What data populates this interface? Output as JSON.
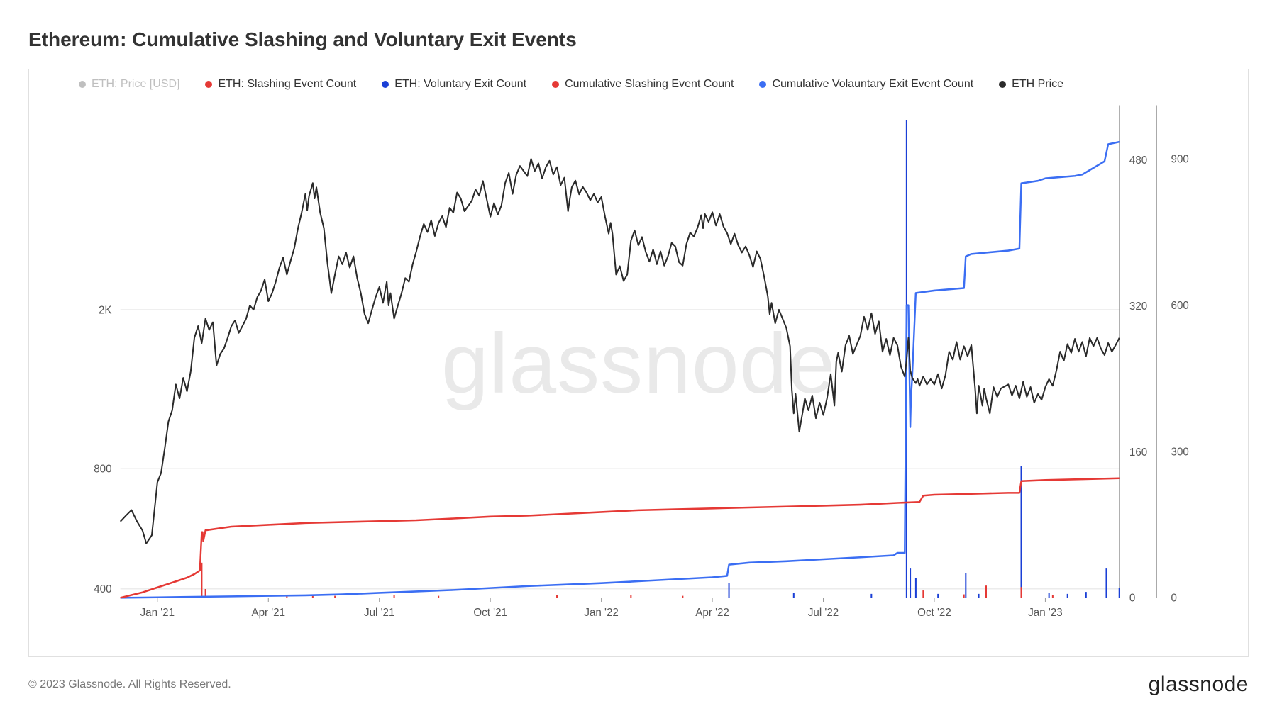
{
  "title": "Ethereum: Cumulative Slashing and Voluntary Exit Events",
  "watermark": "glassnode",
  "copyright": "© 2023 Glassnode. All Rights Reserved.",
  "brand": "glassnode",
  "colors": {
    "price": "#2a2a2a",
    "slash_event": "#e53935",
    "vol_exit_event": "#1a3fd6",
    "cum_slash": "#e53935",
    "cum_vol_exit": "#3b6ef3",
    "muted": "#bfbfbf",
    "grid": "#e5e5e5",
    "border": "#e0e0e0",
    "bg": "#ffffff"
  },
  "legend": [
    {
      "label": "ETH: Price [USD]",
      "color": "#bfbfbf",
      "muted": true
    },
    {
      "label": "ETH: Slashing Event Count",
      "color": "#e53935"
    },
    {
      "label": "ETH: Voluntary Exit Count",
      "color": "#1a3fd6"
    },
    {
      "label": "Cumulative Slashing Event Count",
      "color": "#e53935"
    },
    {
      "label": "Cumulative Volauntary Exit Event Count",
      "color": "#3b6ef3"
    },
    {
      "label": "ETH Price",
      "color": "#2a2a2a"
    }
  ],
  "x_axis": {
    "min": 0,
    "max": 27,
    "ticks": [
      {
        "t": 1,
        "label": "Jan '21"
      },
      {
        "t": 4,
        "label": "Apr '21"
      },
      {
        "t": 7,
        "label": "Jul '21"
      },
      {
        "t": 10,
        "label": "Oct '21"
      },
      {
        "t": 13,
        "label": "Jan '22"
      },
      {
        "t": 16,
        "label": "Apr '22"
      },
      {
        "t": 19,
        "label": "Jul '22"
      },
      {
        "t": 22,
        "label": "Oct '22"
      },
      {
        "t": 25,
        "label": "Jan '23"
      }
    ]
  },
  "price_axis": {
    "log": true,
    "min": 380,
    "max": 6500,
    "ticks": [
      {
        "v": 400,
        "label": "400"
      },
      {
        "v": 800,
        "label": "800"
      },
      {
        "v": 2000,
        "label": "2K"
      }
    ],
    "line_width": 2
  },
  "right1_axis": {
    "min": 0,
    "max": 540,
    "ticks": [
      {
        "v": 0,
        "label": "0"
      },
      {
        "v": 160,
        "label": "160"
      },
      {
        "v": 320,
        "label": "320"
      },
      {
        "v": 480,
        "label": "480"
      }
    ]
  },
  "right2_axis": {
    "min": 0,
    "max": 1010,
    "ticks": [
      {
        "v": 0,
        "label": "0"
      },
      {
        "v": 300,
        "label": "300"
      },
      {
        "v": 600,
        "label": "600"
      },
      {
        "v": 900,
        "label": "900"
      }
    ]
  },
  "price": [
    [
      0.0,
      590
    ],
    [
      0.15,
      610
    ],
    [
      0.3,
      630
    ],
    [
      0.45,
      590
    ],
    [
      0.6,
      560
    ],
    [
      0.7,
      520
    ],
    [
      0.85,
      545
    ],
    [
      1.0,
      740
    ],
    [
      1.1,
      780
    ],
    [
      1.2,
      900
    ],
    [
      1.3,
      1050
    ],
    [
      1.4,
      1120
    ],
    [
      1.5,
      1300
    ],
    [
      1.6,
      1200
    ],
    [
      1.7,
      1350
    ],
    [
      1.8,
      1250
    ],
    [
      1.9,
      1400
    ],
    [
      2.0,
      1700
    ],
    [
      2.1,
      1820
    ],
    [
      2.2,
      1650
    ],
    [
      2.3,
      1900
    ],
    [
      2.4,
      1780
    ],
    [
      2.5,
      1860
    ],
    [
      2.6,
      1450
    ],
    [
      2.7,
      1550
    ],
    [
      2.8,
      1600
    ],
    [
      2.9,
      1700
    ],
    [
      3.0,
      1820
    ],
    [
      3.1,
      1880
    ],
    [
      3.2,
      1750
    ],
    [
      3.3,
      1820
    ],
    [
      3.4,
      1900
    ],
    [
      3.5,
      2050
    ],
    [
      3.6,
      2000
    ],
    [
      3.7,
      2150
    ],
    [
      3.8,
      2230
    ],
    [
      3.9,
      2380
    ],
    [
      4.0,
      2100
    ],
    [
      4.1,
      2200
    ],
    [
      4.2,
      2350
    ],
    [
      4.3,
      2550
    ],
    [
      4.4,
      2700
    ],
    [
      4.5,
      2450
    ],
    [
      4.6,
      2650
    ],
    [
      4.7,
      2850
    ],
    [
      4.8,
      3200
    ],
    [
      4.9,
      3500
    ],
    [
      5.0,
      3900
    ],
    [
      5.05,
      3550
    ],
    [
      5.1,
      3850
    ],
    [
      5.2,
      4150
    ],
    [
      5.25,
      3800
    ],
    [
      5.3,
      4050
    ],
    [
      5.4,
      3500
    ],
    [
      5.5,
      3200
    ],
    [
      5.6,
      2600
    ],
    [
      5.65,
      2400
    ],
    [
      5.7,
      2200
    ],
    [
      5.8,
      2450
    ],
    [
      5.9,
      2720
    ],
    [
      6.0,
      2600
    ],
    [
      6.1,
      2780
    ],
    [
      6.2,
      2550
    ],
    [
      6.3,
      2720
    ],
    [
      6.4,
      2400
    ],
    [
      6.5,
      2200
    ],
    [
      6.6,
      1950
    ],
    [
      6.7,
      1850
    ],
    [
      6.8,
      2000
    ],
    [
      6.9,
      2150
    ],
    [
      7.0,
      2280
    ],
    [
      7.1,
      2080
    ],
    [
      7.2,
      2350
    ],
    [
      7.25,
      2050
    ],
    [
      7.3,
      2200
    ],
    [
      7.4,
      1900
    ],
    [
      7.5,
      2050
    ],
    [
      7.6,
      2200
    ],
    [
      7.7,
      2400
    ],
    [
      7.8,
      2350
    ],
    [
      7.9,
      2600
    ],
    [
      8.0,
      2800
    ],
    [
      8.1,
      3050
    ],
    [
      8.2,
      3280
    ],
    [
      8.3,
      3130
    ],
    [
      8.4,
      3350
    ],
    [
      8.5,
      3060
    ],
    [
      8.6,
      3300
    ],
    [
      8.7,
      3430
    ],
    [
      8.8,
      3220
    ],
    [
      8.9,
      3600
    ],
    [
      9.0,
      3500
    ],
    [
      9.1,
      3930
    ],
    [
      9.2,
      3800
    ],
    [
      9.3,
      3530
    ],
    [
      9.5,
      3750
    ],
    [
      9.6,
      4000
    ],
    [
      9.7,
      3860
    ],
    [
      9.8,
      4200
    ],
    [
      10.0,
      3420
    ],
    [
      10.1,
      3700
    ],
    [
      10.2,
      3460
    ],
    [
      10.3,
      3650
    ],
    [
      10.4,
      4150
    ],
    [
      10.5,
      4400
    ],
    [
      10.6,
      3900
    ],
    [
      10.7,
      4350
    ],
    [
      10.8,
      4580
    ],
    [
      11.0,
      4320
    ],
    [
      11.1,
      4770
    ],
    [
      11.2,
      4450
    ],
    [
      11.3,
      4650
    ],
    [
      11.4,
      4260
    ],
    [
      11.5,
      4550
    ],
    [
      11.6,
      4720
    ],
    [
      11.7,
      4360
    ],
    [
      11.8,
      4550
    ],
    [
      11.9,
      4100
    ],
    [
      12.0,
      4280
    ],
    [
      12.1,
      3530
    ],
    [
      12.15,
      3800
    ],
    [
      12.2,
      4050
    ],
    [
      12.3,
      4210
    ],
    [
      12.4,
      3890
    ],
    [
      12.5,
      4060
    ],
    [
      12.6,
      3930
    ],
    [
      12.7,
      3760
    ],
    [
      12.8,
      3900
    ],
    [
      12.9,
      3710
    ],
    [
      13.0,
      3830
    ],
    [
      13.1,
      3420
    ],
    [
      13.2,
      3100
    ],
    [
      13.25,
      3300
    ],
    [
      13.3,
      3100
    ],
    [
      13.4,
      2450
    ],
    [
      13.5,
      2570
    ],
    [
      13.6,
      2360
    ],
    [
      13.7,
      2450
    ],
    [
      13.8,
      2980
    ],
    [
      13.9,
      3160
    ],
    [
      14.0,
      2900
    ],
    [
      14.1,
      3040
    ],
    [
      14.2,
      2790
    ],
    [
      14.3,
      2640
    ],
    [
      14.4,
      2830
    ],
    [
      14.5,
      2600
    ],
    [
      14.6,
      2800
    ],
    [
      14.7,
      2580
    ],
    [
      14.8,
      2720
    ],
    [
      14.9,
      2940
    ],
    [
      15.0,
      2880
    ],
    [
      15.1,
      2630
    ],
    [
      15.2,
      2580
    ],
    [
      15.3,
      2920
    ],
    [
      15.4,
      3120
    ],
    [
      15.5,
      3050
    ],
    [
      15.6,
      3210
    ],
    [
      15.7,
      3450
    ],
    [
      15.75,
      3200
    ],
    [
      15.8,
      3470
    ],
    [
      15.9,
      3320
    ],
    [
      16.0,
      3510
    ],
    [
      16.1,
      3250
    ],
    [
      16.2,
      3470
    ],
    [
      16.3,
      3230
    ],
    [
      16.4,
      3110
    ],
    [
      16.5,
      2920
    ],
    [
      16.6,
      3100
    ],
    [
      16.7,
      2900
    ],
    [
      16.8,
      2780
    ],
    [
      16.9,
      2880
    ],
    [
      17.0,
      2740
    ],
    [
      17.1,
      2560
    ],
    [
      17.2,
      2800
    ],
    [
      17.3,
      2680
    ],
    [
      17.4,
      2420
    ],
    [
      17.5,
      2160
    ],
    [
      17.55,
      1950
    ],
    [
      17.6,
      2080
    ],
    [
      17.7,
      1850
    ],
    [
      17.8,
      2000
    ],
    [
      18.0,
      1800
    ],
    [
      18.1,
      1620
    ],
    [
      18.15,
      1260
    ],
    [
      18.2,
      1100
    ],
    [
      18.25,
      1230
    ],
    [
      18.3,
      1100
    ],
    [
      18.35,
      990
    ],
    [
      18.45,
      1120
    ],
    [
      18.5,
      1200
    ],
    [
      18.6,
      1120
    ],
    [
      18.7,
      1220
    ],
    [
      18.8,
      1070
    ],
    [
      18.9,
      1170
    ],
    [
      19.0,
      1090
    ],
    [
      19.1,
      1200
    ],
    [
      19.2,
      1380
    ],
    [
      19.3,
      1150
    ],
    [
      19.35,
      1480
    ],
    [
      19.4,
      1560
    ],
    [
      19.5,
      1400
    ],
    [
      19.6,
      1630
    ],
    [
      19.7,
      1720
    ],
    [
      19.8,
      1550
    ],
    [
      20.0,
      1720
    ],
    [
      20.1,
      1920
    ],
    [
      20.2,
      1780
    ],
    [
      20.3,
      1960
    ],
    [
      20.4,
      1740
    ],
    [
      20.5,
      1870
    ],
    [
      20.6,
      1570
    ],
    [
      20.7,
      1690
    ],
    [
      20.8,
      1540
    ],
    [
      20.9,
      1700
    ],
    [
      21.0,
      1630
    ],
    [
      21.1,
      1440
    ],
    [
      21.2,
      1360
    ],
    [
      21.25,
      1500
    ],
    [
      21.3,
      1700
    ],
    [
      21.35,
      1410
    ],
    [
      21.4,
      1350
    ],
    [
      21.5,
      1310
    ],
    [
      21.55,
      1340
    ],
    [
      21.6,
      1290
    ],
    [
      21.7,
      1360
    ],
    [
      21.8,
      1300
    ],
    [
      21.9,
      1340
    ],
    [
      22.0,
      1300
    ],
    [
      22.1,
      1380
    ],
    [
      22.2,
      1270
    ],
    [
      22.3,
      1370
    ],
    [
      22.4,
      1570
    ],
    [
      22.5,
      1500
    ],
    [
      22.6,
      1660
    ],
    [
      22.7,
      1500
    ],
    [
      22.8,
      1620
    ],
    [
      22.9,
      1530
    ],
    [
      23.0,
      1630
    ],
    [
      23.1,
      1280
    ],
    [
      23.15,
      1100
    ],
    [
      23.2,
      1290
    ],
    [
      23.25,
      1220
    ],
    [
      23.3,
      1150
    ],
    [
      23.35,
      1270
    ],
    [
      23.4,
      1200
    ],
    [
      23.5,
      1100
    ],
    [
      23.6,
      1280
    ],
    [
      23.7,
      1210
    ],
    [
      23.8,
      1270
    ],
    [
      24.0,
      1300
    ],
    [
      24.1,
      1220
    ],
    [
      24.2,
      1290
    ],
    [
      24.3,
      1200
    ],
    [
      24.4,
      1320
    ],
    [
      24.5,
      1210
    ],
    [
      24.6,
      1280
    ],
    [
      24.7,
      1170
    ],
    [
      24.8,
      1230
    ],
    [
      24.9,
      1190
    ],
    [
      25.0,
      1280
    ],
    [
      25.1,
      1340
    ],
    [
      25.2,
      1290
    ],
    [
      25.3,
      1410
    ],
    [
      25.4,
      1570
    ],
    [
      25.5,
      1490
    ],
    [
      25.6,
      1640
    ],
    [
      25.7,
      1560
    ],
    [
      25.8,
      1690
    ],
    [
      25.9,
      1570
    ],
    [
      26.0,
      1660
    ],
    [
      26.1,
      1530
    ],
    [
      26.2,
      1700
    ],
    [
      26.3,
      1620
    ],
    [
      26.4,
      1700
    ],
    [
      26.5,
      1600
    ],
    [
      26.6,
      1540
    ],
    [
      26.7,
      1650
    ],
    [
      26.8,
      1570
    ],
    [
      26.9,
      1630
    ],
    [
      27.0,
      1700
    ]
  ],
  "cum_slash": [
    [
      0,
      0
    ],
    [
      0.3,
      3
    ],
    [
      0.6,
      6
    ],
    [
      0.9,
      10
    ],
    [
      1.2,
      14
    ],
    [
      1.5,
      18
    ],
    [
      1.8,
      22
    ],
    [
      2.0,
      26
    ],
    [
      2.15,
      30
    ],
    [
      2.2,
      72
    ],
    [
      2.22,
      72
    ],
    [
      2.24,
      62
    ],
    [
      2.3,
      74
    ],
    [
      3,
      78
    ],
    [
      4,
      80
    ],
    [
      5,
      82
    ],
    [
      6,
      83
    ],
    [
      7,
      84
    ],
    [
      8,
      85
    ],
    [
      9,
      87
    ],
    [
      10,
      89
    ],
    [
      11,
      90
    ],
    [
      12,
      92
    ],
    [
      13,
      94
    ],
    [
      14,
      96
    ],
    [
      15,
      97
    ],
    [
      16,
      98
    ],
    [
      17,
      99
    ],
    [
      18,
      100
    ],
    [
      19,
      101
    ],
    [
      20,
      102
    ],
    [
      21,
      104
    ],
    [
      21.6,
      105
    ],
    [
      21.7,
      112
    ],
    [
      22,
      113
    ],
    [
      23,
      114
    ],
    [
      24,
      115
    ],
    [
      24.3,
      115
    ],
    [
      24.35,
      128
    ],
    [
      25,
      129
    ],
    [
      26,
      130
    ],
    [
      27,
      131
    ]
  ],
  "cum_vol_exit": [
    [
      0,
      0
    ],
    [
      1,
      1
    ],
    [
      2,
      2
    ],
    [
      3,
      3
    ],
    [
      4,
      4
    ],
    [
      5,
      5
    ],
    [
      6,
      7
    ],
    [
      7,
      10
    ],
    [
      8,
      13
    ],
    [
      9,
      16
    ],
    [
      10,
      20
    ],
    [
      11,
      24
    ],
    [
      12,
      27
    ],
    [
      13,
      30
    ],
    [
      14,
      34
    ],
    [
      15,
      38
    ],
    [
      16,
      42
    ],
    [
      16.4,
      45
    ],
    [
      16.45,
      68
    ],
    [
      17,
      72
    ],
    [
      18,
      75
    ],
    [
      19,
      79
    ],
    [
      20,
      83
    ],
    [
      20.9,
      87
    ],
    [
      21.0,
      92
    ],
    [
      21.2,
      92
    ],
    [
      21.25,
      600
    ],
    [
      21.3,
      600
    ],
    [
      21.35,
      350
    ],
    [
      21.37,
      410
    ],
    [
      21.4,
      450
    ],
    [
      21.5,
      625
    ],
    [
      22,
      630
    ],
    [
      22.8,
      635
    ],
    [
      22.85,
      700
    ],
    [
      23,
      705
    ],
    [
      24,
      712
    ],
    [
      24.3,
      716
    ],
    [
      24.35,
      850
    ],
    [
      24.8,
      855
    ],
    [
      25,
      860
    ],
    [
      25.8,
      865
    ],
    [
      26,
      868
    ],
    [
      26.6,
      895
    ],
    [
      26.7,
      930
    ],
    [
      27,
      935
    ]
  ],
  "slash_spikes": [
    [
      2.2,
      72
    ],
    [
      2.3,
      18
    ],
    [
      4.5,
      6
    ],
    [
      5.2,
      5
    ],
    [
      5.8,
      4
    ],
    [
      7.4,
      5
    ],
    [
      8.6,
      4
    ],
    [
      11.8,
      5
    ],
    [
      13.8,
      5
    ],
    [
      15.2,
      4
    ],
    [
      21.7,
      15
    ],
    [
      22.8,
      7
    ],
    [
      23.4,
      25
    ],
    [
      24.35,
      22
    ],
    [
      25.2,
      5
    ]
  ],
  "vol_spikes": [
    [
      16.45,
      30
    ],
    [
      18.2,
      10
    ],
    [
      20.3,
      8
    ],
    [
      21.25,
      980
    ],
    [
      21.35,
      60
    ],
    [
      21.5,
      40
    ],
    [
      22.1,
      8
    ],
    [
      22.85,
      50
    ],
    [
      23.2,
      8
    ],
    [
      24.35,
      270
    ],
    [
      25.1,
      10
    ],
    [
      25.6,
      8
    ],
    [
      26.1,
      12
    ],
    [
      26.65,
      60
    ],
    [
      27,
      20
    ]
  ],
  "line_widths": {
    "price": 2,
    "cum": 2.4,
    "spike": 2
  }
}
